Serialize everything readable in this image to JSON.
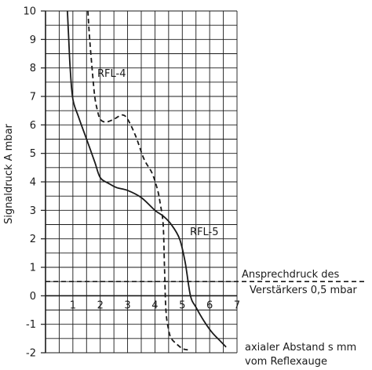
{
  "chart_data": {
    "type": "line",
    "title": "",
    "ylabel": "Signaldruck A mbar",
    "xlabel_lines": [
      "axialer Abstand s mm",
      "vom Reflexauge"
    ],
    "xlim": [
      0,
      7
    ],
    "ylim": [
      -2,
      10
    ],
    "x_ticks": [
      1,
      2,
      3,
      4,
      5,
      6,
      7
    ],
    "y_ticks": [
      -2,
      -1,
      0,
      1,
      2,
      3,
      4,
      5,
      6,
      7,
      8,
      9,
      10
    ],
    "grid": true,
    "series": [
      {
        "name": "RFL-4",
        "style": "dashed",
        "x": [
          1.55,
          1.6,
          1.7,
          1.8,
          1.9,
          2.0,
          2.2,
          2.5,
          2.8,
          3.0,
          3.3,
          3.6,
          3.9,
          4.1,
          4.2,
          4.3,
          4.35,
          4.4,
          4.5,
          4.6,
          4.8,
          5.0,
          5.2
        ],
        "y": [
          10.0,
          9.2,
          8.0,
          7.0,
          6.5,
          6.2,
          6.1,
          6.2,
          6.35,
          6.2,
          5.6,
          4.8,
          4.3,
          3.7,
          3.2,
          2.5,
          1.0,
          -0.5,
          -1.2,
          -1.5,
          -1.7,
          -1.85,
          -1.9
        ]
      },
      {
        "name": "RFL-5",
        "style": "solid",
        "x": [
          0.8,
          0.85,
          0.9,
          1.0,
          1.2,
          1.5,
          1.8,
          2.0,
          2.3,
          2.6,
          3.0,
          3.5,
          4.0,
          4.3,
          4.6,
          4.9,
          5.1,
          5.3,
          5.5,
          5.8,
          6.1,
          6.4,
          6.6
        ],
        "y": [
          10.0,
          9.0,
          8.0,
          6.9,
          6.3,
          5.5,
          4.7,
          4.15,
          3.95,
          3.8,
          3.7,
          3.45,
          3.0,
          2.8,
          2.5,
          2.0,
          1.2,
          0.0,
          -0.4,
          -0.9,
          -1.3,
          -1.6,
          -1.8
        ]
      }
    ],
    "threshold": {
      "y": 0.5,
      "style": "dashed",
      "label_lines": [
        "Ansprechdruck des",
        "Verstärkers 0,5 mbar"
      ]
    },
    "annotations": [
      {
        "text": "RFL-4",
        "series": "RFL-4"
      },
      {
        "text": "RFL-5",
        "series": "RFL-5"
      }
    ]
  }
}
